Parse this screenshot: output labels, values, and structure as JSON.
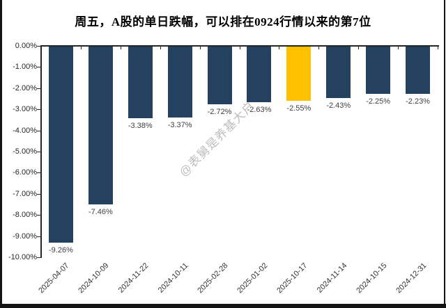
{
  "chart_data": {
    "type": "bar",
    "title": "周五，A股的单日跌幅，可以排在0924行情以来的第7位",
    "categories": [
      "2025-04-07",
      "2024-10-09",
      "2024-11-22",
      "2024-10-11",
      "2025-02-28",
      "2025-01-02",
      "2025-10-17",
      "2024-11-14",
      "2024-10-15",
      "2024-12-31"
    ],
    "values": [
      -9.26,
      -7.46,
      -3.38,
      -3.37,
      -2.72,
      -2.63,
      -2.55,
      -2.43,
      -2.25,
      -2.23
    ],
    "value_labels": [
      "-9.26%",
      "-7.46%",
      "-3.38%",
      "-3.37%",
      "-2.72%",
      "-2.63%",
      "-2.55%",
      "-2.43%",
      "-2.25%",
      "-2.23%"
    ],
    "highlight_index": 6,
    "ylim": [
      -10,
      0
    ],
    "ytick_labels": [
      "0.00%",
      "-1.00%",
      "-2.00%",
      "-3.00%",
      "-4.00%",
      "-5.00%",
      "-6.00%",
      "-7.00%",
      "-8.00%",
      "-9.00%",
      "-10.00%"
    ],
    "grid": false,
    "legend": false,
    "xlabel": "",
    "ylabel": "",
    "bar_color": "#24415f",
    "highlight_color": "#ffc000",
    "axis_color": "#262626",
    "label_color": "#3f3f3f",
    "watermark": "@表舅是养基大户"
  }
}
